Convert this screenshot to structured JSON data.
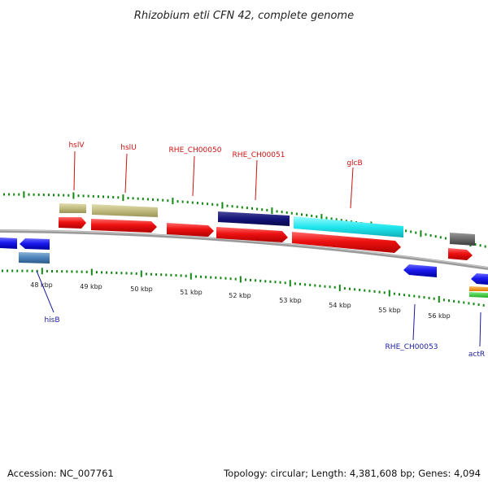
{
  "title": "Rhizobium etli CFN 42, complete genome",
  "footer": {
    "accession": "Accession: NC_007761",
    "summary": "Topology: circular; Length: 4,381,608 bp; Genes: 4,094"
  },
  "colors": {
    "cds": "#ee1111",
    "highlight_green": "#118811",
    "backbone": "#888888",
    "label_red": "#cc1111",
    "label_blue": "#1a1aa0"
  },
  "kbp_ticks": [
    "48 kbp",
    "49 kbp",
    "50 kbp",
    "51 kbp",
    "52 kbp",
    "53 kbp",
    "54 kbp",
    "55 kbp",
    "56 kbp"
  ],
  "top_labels": [
    "hslV",
    "hslU",
    "RHE_CH00050",
    "RHE_CH00051",
    "glcB"
  ],
  "bottom_labels": [
    "hisB",
    "RHE_CH00053",
    "actR"
  ]
}
